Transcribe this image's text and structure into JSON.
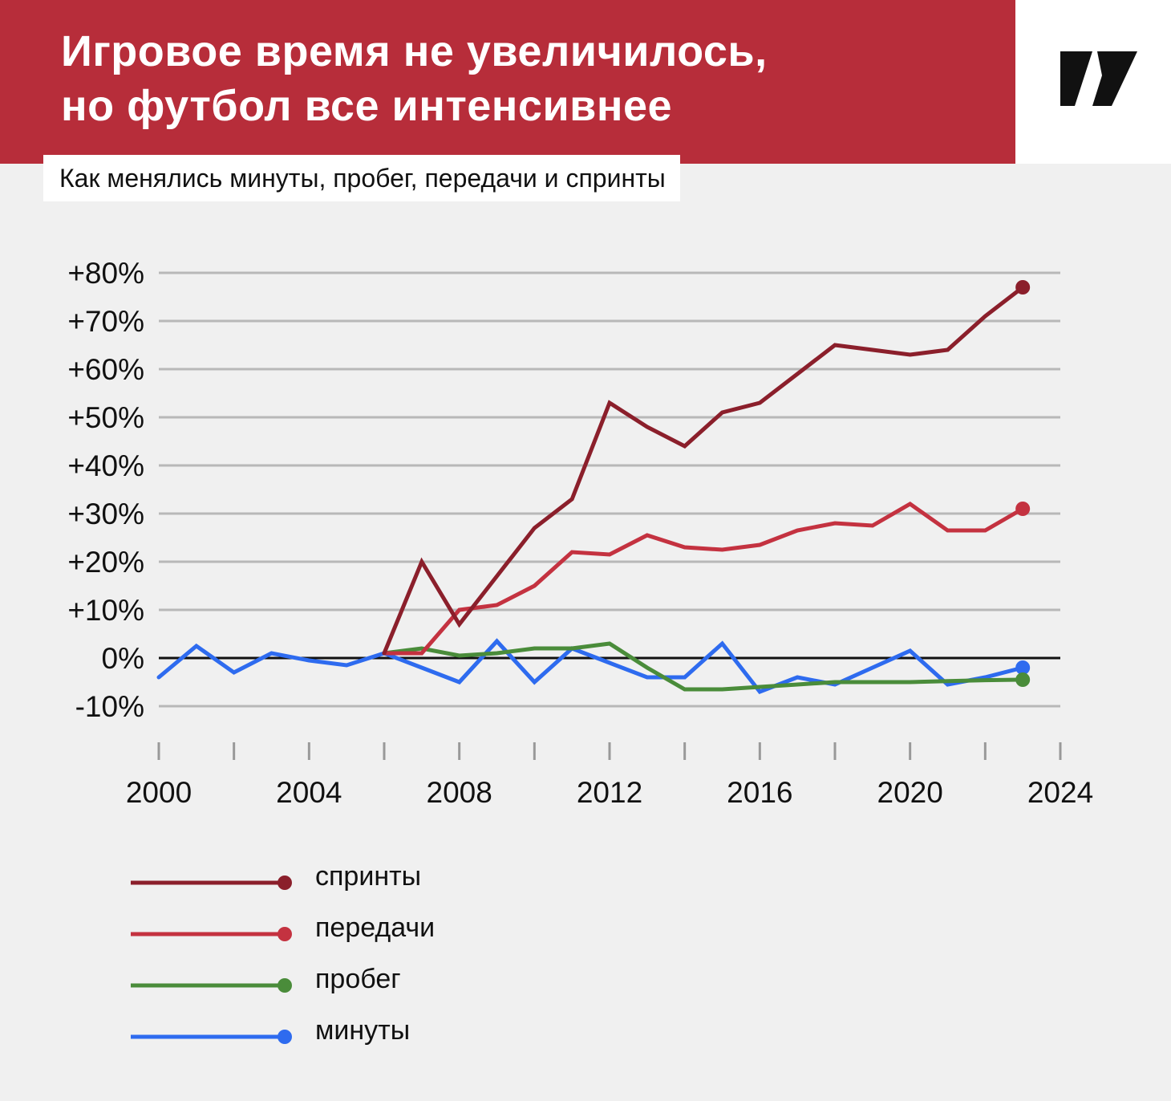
{
  "header": {
    "title_line1": "Игровое время не увеличилось,",
    "title_line2": "но футбол все интенсивнее",
    "subtitle": "Как менялись минуты, пробег, передачи и спринты",
    "logo_icon": "publisher-logo-icon"
  },
  "chart_data": {
    "type": "line",
    "title": "Игровое время не увеличилось, но футбол все интенсивнее",
    "subtitle": "Как менялись минуты, пробег, передачи и спринты",
    "xlabel": "",
    "ylabel": "",
    "xlim": [
      2000,
      2024
    ],
    "ylim": [
      -10,
      80
    ],
    "grid": true,
    "legend_position": "bottom-left",
    "y_ticks": [
      80,
      70,
      60,
      50,
      40,
      30,
      20,
      10,
      0,
      -10
    ],
    "y_tick_labels": [
      "+80%",
      "+70%",
      "+60%",
      "+50%",
      "+40%",
      "+30%",
      "+20%",
      "+10%",
      "0%",
      "-10%"
    ],
    "x_ticks": [
      2000,
      2004,
      2008,
      2012,
      2016,
      2020,
      2024
    ],
    "x_tick_labels": [
      "2000",
      "2004",
      "2008",
      "2012",
      "2016",
      "2020",
      "2024"
    ],
    "series": [
      {
        "name": "спринты",
        "color": "#8b1f2b",
        "x": [
          2006,
          2007,
          2008,
          2009,
          2010,
          2011,
          2012,
          2013,
          2014,
          2015,
          2016,
          2017,
          2018,
          2019,
          2020,
          2021,
          2022,
          2023
        ],
        "values": [
          1,
          20,
          7,
          17,
          27,
          33,
          53,
          48,
          44,
          51,
          53,
          59,
          65,
          64,
          63,
          64,
          71,
          77
        ]
      },
      {
        "name": "передачи",
        "color": "#c43240",
        "x": [
          2006,
          2007,
          2008,
          2009,
          2010,
          2011,
          2012,
          2013,
          2014,
          2015,
          2016,
          2017,
          2018,
          2019,
          2020,
          2021,
          2022,
          2023
        ],
        "values": [
          1,
          1,
          10,
          11,
          15,
          22,
          21.5,
          25.5,
          23,
          22.5,
          23.5,
          26.5,
          28,
          27.5,
          32,
          26.5,
          26.5,
          31
        ]
      },
      {
        "name": "пробег",
        "color": "#4a8c3a",
        "x": [
          2006,
          2007,
          2008,
          2009,
          2010,
          2011,
          2012,
          2013,
          2014,
          2015,
          2016,
          2017,
          2018,
          2019,
          2020,
          2021,
          2022,
          2023
        ],
        "values": [
          1,
          2,
          0.5,
          1,
          2,
          2,
          3,
          -2,
          -6.5,
          -6.5,
          -6,
          -5.5,
          -5,
          -5,
          -5,
          -4.8,
          -4.6,
          -4.5
        ]
      },
      {
        "name": "минуты",
        "color": "#2e6bef",
        "x": [
          2000,
          2001,
          2002,
          2003,
          2004,
          2005,
          2006,
          2007,
          2008,
          2009,
          2010,
          2011,
          2012,
          2013,
          2014,
          2015,
          2016,
          2017,
          2018,
          2019,
          2020,
          2021,
          2022,
          2023
        ],
        "values": [
          -4,
          2.5,
          -3,
          1,
          -0.5,
          -1.5,
          1,
          -2,
          -5,
          3.5,
          -5,
          2,
          -1,
          -4,
          -4,
          3,
          -7,
          -4,
          -5.5,
          -2,
          1.5,
          -5.5,
          -4,
          -2
        ]
      }
    ]
  }
}
